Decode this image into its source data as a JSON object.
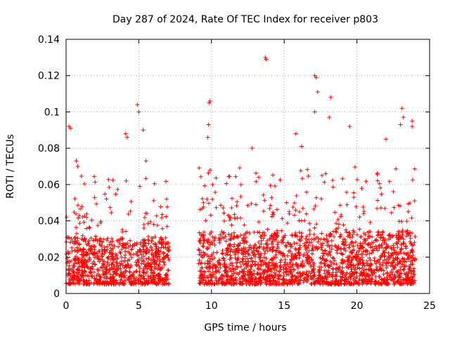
{
  "chart_data": {
    "type": "scatter",
    "title": "Day 287 of 2024, Rate Of TEC Index for receiver p803",
    "xlabel": "GPS time / hours",
    "ylabel": "ROTI / TECUs",
    "xlim": [
      0,
      25
    ],
    "ylim": [
      0,
      0.14
    ],
    "xticks": [
      0,
      5,
      10,
      15,
      20,
      25
    ],
    "xtick_labels": [
      "0",
      "5",
      "10",
      "15",
      "20",
      "25"
    ],
    "yticks": [
      0,
      0.02,
      0.04,
      0.06,
      0.08,
      0.1,
      0.12,
      0.14
    ],
    "ytick_labels": [
      "0",
      "0.02",
      "0.04",
      "0.06",
      "0.08",
      "0.1",
      "0.12",
      "0.14"
    ],
    "grid": true,
    "marker": "+",
    "color": "#ff0000",
    "series": [
      {
        "name": "ROTI",
        "segments": [
          {
            "x_range": [
              0.0,
              7.1
            ],
            "typical_range": [
              0.005,
              0.045
            ]
          },
          {
            "x_range": [
              9.1,
              24.0
            ],
            "typical_range": [
              0.005,
              0.05
            ]
          }
        ],
        "notable_points": [
          {
            "x": 0.2,
            "y": 0.092
          },
          {
            "x": 0.3,
            "y": 0.091
          },
          {
            "x": 0.7,
            "y": 0.073
          },
          {
            "x": 0.8,
            "y": 0.07
          },
          {
            "x": 4.1,
            "y": 0.088
          },
          {
            "x": 4.2,
            "y": 0.086
          },
          {
            "x": 4.9,
            "y": 0.104
          },
          {
            "x": 5.0,
            "y": 0.1
          },
          {
            "x": 5.3,
            "y": 0.09
          },
          {
            "x": 5.5,
            "y": 0.073
          },
          {
            "x": 9.9,
            "y": 0.106
          },
          {
            "x": 9.85,
            "y": 0.105
          },
          {
            "x": 9.8,
            "y": 0.093
          },
          {
            "x": 9.75,
            "y": 0.086
          },
          {
            "x": 13.7,
            "y": 0.13
          },
          {
            "x": 13.75,
            "y": 0.129
          },
          {
            "x": 15.8,
            "y": 0.088
          },
          {
            "x": 17.1,
            "y": 0.12
          },
          {
            "x": 17.2,
            "y": 0.119
          },
          {
            "x": 17.3,
            "y": 0.111
          },
          {
            "x": 17.1,
            "y": 0.1
          },
          {
            "x": 18.2,
            "y": 0.108
          },
          {
            "x": 18.1,
            "y": 0.097
          },
          {
            "x": 19.5,
            "y": 0.092
          },
          {
            "x": 23.1,
            "y": 0.102
          },
          {
            "x": 23.2,
            "y": 0.097
          },
          {
            "x": 23.0,
            "y": 0.093
          },
          {
            "x": 23.8,
            "y": 0.095
          },
          {
            "x": 23.8,
            "y": 0.092
          },
          {
            "x": 22.0,
            "y": 0.085
          },
          {
            "x": 12.8,
            "y": 0.08
          },
          {
            "x": 16.2,
            "y": 0.081
          }
        ]
      }
    ]
  }
}
